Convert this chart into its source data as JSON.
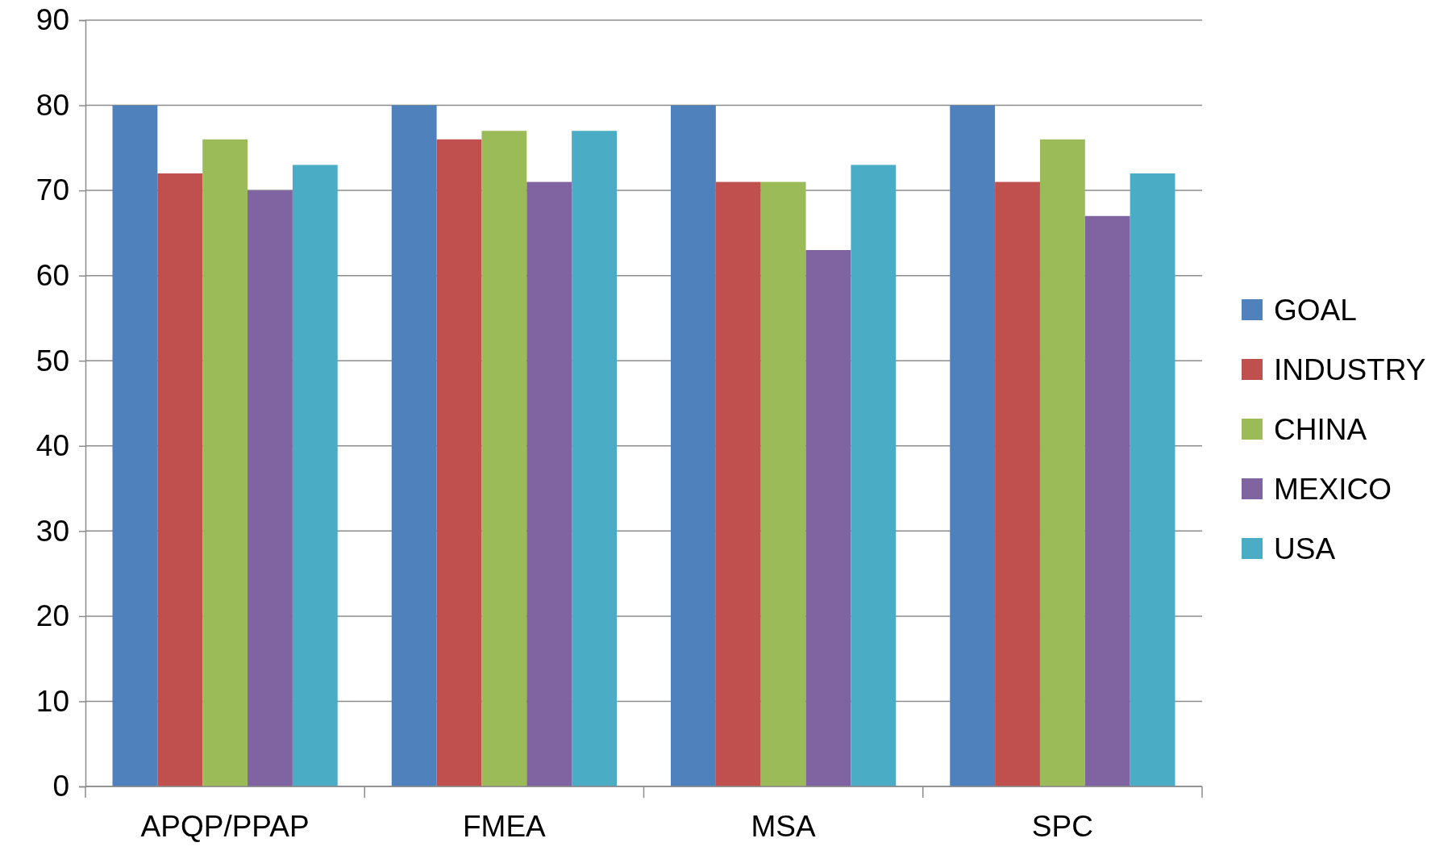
{
  "chart_data": {
    "type": "bar",
    "categories": [
      "APQP/PPAP",
      "FMEA",
      "MSA",
      "SPC"
    ],
    "series": [
      {
        "name": "GOAL",
        "color": "#4f81bd",
        "values": [
          80,
          80,
          80,
          80
        ]
      },
      {
        "name": "INDUSTRY",
        "color": "#c0504d",
        "values": [
          72,
          76,
          71,
          71
        ]
      },
      {
        "name": "CHINA",
        "color": "#9bbb59",
        "values": [
          76,
          77,
          71,
          76
        ]
      },
      {
        "name": "MEXICO",
        "color": "#8064a2",
        "values": [
          70,
          71,
          63,
          67
        ]
      },
      {
        "name": "USA",
        "color": "#4bacc6",
        "values": [
          73,
          77,
          73,
          72
        ]
      }
    ],
    "ylim": [
      0,
      90
    ],
    "yticks": [
      0,
      10,
      20,
      30,
      40,
      50,
      60,
      70,
      80,
      90
    ],
    "grid": "y",
    "legend": "right"
  }
}
